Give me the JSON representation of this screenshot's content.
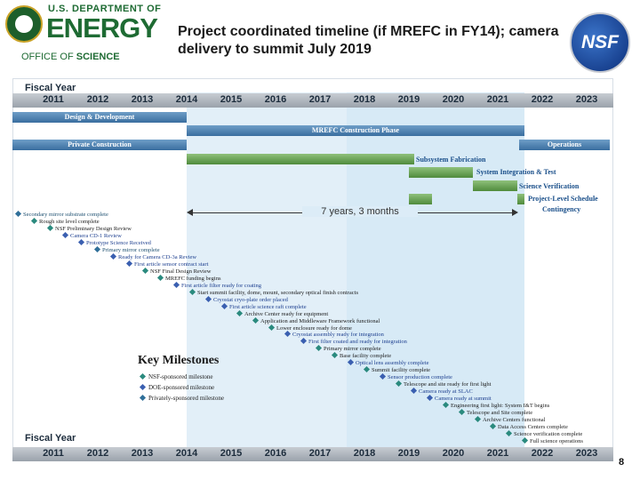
{
  "header": {
    "doe_line1": "U.S. DEPARTMENT OF",
    "doe_line2": "ENERGY",
    "doe_line3_a": "OFFICE OF ",
    "doe_line3_b": "SCIENCE",
    "title": "Project coordinated timeline (if MREFC in FY14); camera delivery to summit July 2019",
    "nsf_logo_text": "NSF"
  },
  "timeline": {
    "fiscal_year_label_top": "Fiscal Year",
    "fiscal_year_label_bottom": "Fiscal Year",
    "years": [
      "2011",
      "2012",
      "2013",
      "2014",
      "2015",
      "2016",
      "2017",
      "2018",
      "2019",
      "2020",
      "2021",
      "2022",
      "2023"
    ],
    "phases": {
      "design": "Design & Development",
      "mrefc": "MREFC Construction Phase",
      "private": "Private Construction",
      "operations": "Operations",
      "subsystem": "Subsystem Fabrication",
      "integration": "System Integration & Test",
      "verification": "Science Verification",
      "contingency_1": "Project-Level Schedule",
      "contingency_2": "Contingency"
    },
    "span_label": "7 years, 3 months",
    "colors": {
      "blue_bar": "#4a7fb0",
      "green_bar": "#5f9a4a",
      "band": "#e2eff8"
    }
  },
  "milestones": [
    {
      "label": "Secondary mirror substrate complete",
      "type": "pvt"
    },
    {
      "label": "Rough site level complete",
      "type": "nsf"
    },
    {
      "label": "NSF Preliminary Design Review",
      "type": "nsf"
    },
    {
      "label": "Camera CD-1 Review",
      "type": "doe"
    },
    {
      "label": "Prototype Science Received",
      "type": "doe"
    },
    {
      "label": "Primary mirror complete",
      "type": "pvt"
    },
    {
      "label": "Ready for Camera CD-3a Review",
      "type": "doe"
    },
    {
      "label": "First article sensor contract start",
      "type": "doe"
    },
    {
      "label": "NSF Final Design Review",
      "type": "nsf"
    },
    {
      "label": "MREFC funding begins",
      "type": "nsf"
    },
    {
      "label": "First article filter ready for coating",
      "type": "doe"
    },
    {
      "label": "Start summit facility, dome, mount, secondary optical finish contracts",
      "type": "nsf"
    },
    {
      "label": "Cryostat cryo-plate order placed",
      "type": "doe"
    },
    {
      "label": "First article science raft complete",
      "type": "doe"
    },
    {
      "label": "Archive Center ready for equipment",
      "type": "nsf"
    },
    {
      "label": "Application and Middleware Framework functional",
      "type": "nsf"
    },
    {
      "label": "Lower enclosure ready for dome",
      "type": "nsf"
    },
    {
      "label": "Cryostat assembly ready for integration",
      "type": "doe"
    },
    {
      "label": "First filter coated and ready for integration",
      "type": "doe"
    },
    {
      "label": "Primary mirror complete",
      "type": "nsf"
    },
    {
      "label": "Base facility complete",
      "type": "nsf"
    },
    {
      "label": "Optical lens assembly complete",
      "type": "doe"
    },
    {
      "label": "Summit facility complete",
      "type": "nsf"
    },
    {
      "label": "Sensor production complete",
      "type": "doe"
    },
    {
      "label": "Telescope and site ready for first light",
      "type": "nsf"
    },
    {
      "label": "Camera ready at SLAC",
      "type": "doe"
    },
    {
      "label": "Camera ready at summit",
      "type": "doe"
    },
    {
      "label": "Engineering first light: System I&T begins",
      "type": "nsf"
    },
    {
      "label": "Telescope and Site complete",
      "type": "nsf"
    },
    {
      "label": "Archive Centers functional",
      "type": "nsf"
    },
    {
      "label": "Data Access Centers complete",
      "type": "nsf"
    },
    {
      "label": "Science verification complete",
      "type": "nsf"
    },
    {
      "label": "Full science operations",
      "type": "nsf"
    }
  ],
  "legend": {
    "title": "Key Milestones",
    "items": [
      {
        "label": "NSF-sponsored milestone",
        "color": "#2a8a7e"
      },
      {
        "label": "DOE-sponsored milestone",
        "color": "#3a5fb0"
      },
      {
        "label": "Privately-sponsored milestone",
        "color": "#2f6f99"
      }
    ]
  },
  "page_number": "8"
}
